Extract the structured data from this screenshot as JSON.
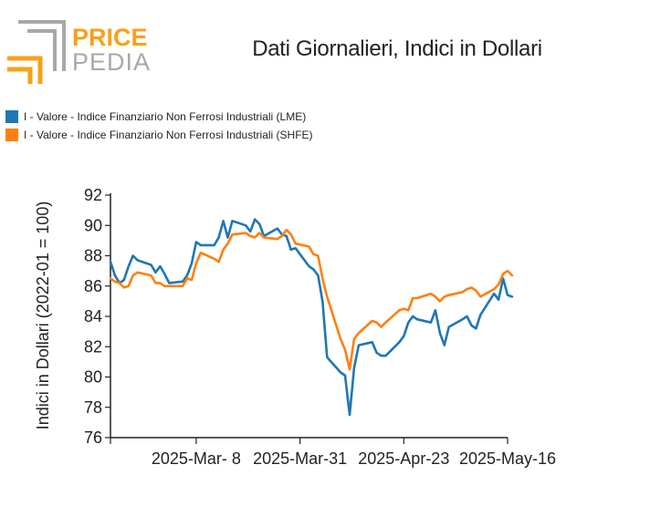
{
  "logo": {
    "text_top": "PRICE",
    "text_bottom": "PEDIA",
    "color_orange": "#f7a11a",
    "color_gray": "#a8a8a8"
  },
  "chart_data": {
    "type": "line",
    "title": "Dati Giornalieri, Indici in Dollari",
    "xlabel": "",
    "ylabel": "Indici in Dollari (2022-01 = 100)",
    "ylim": [
      76,
      92
    ],
    "yticks": [
      76,
      78,
      80,
      82,
      84,
      86,
      88,
      90,
      92
    ],
    "xlim": [
      "2025-02-17",
      "2025-05-16"
    ],
    "xticks": [
      {
        "date": "2025-02-17",
        "label": ""
      },
      {
        "date": "2025-03-08",
        "label": "2025-Mar- 8"
      },
      {
        "date": "2025-03-31",
        "label": "2025-Mar-31"
      },
      {
        "date": "2025-04-23",
        "label": "2025-Apr-23"
      },
      {
        "date": "2025-05-16",
        "label": "2025-May-16"
      }
    ],
    "legend_position": "top-left",
    "grid": false,
    "series": [
      {
        "name": "I - Valore - Indice Finanziario Non Ferrosi Industriali (LME)",
        "color": "#1f77b4",
        "points": [
          [
            "2025-02-17",
            87.6
          ],
          [
            "2025-02-18",
            86.7
          ],
          [
            "2025-02-19",
            86.2
          ],
          [
            "2025-02-20",
            86.4
          ],
          [
            "2025-02-21",
            87.3
          ],
          [
            "2025-02-22",
            88.0
          ],
          [
            "2025-02-23",
            87.7
          ],
          [
            "2025-02-26",
            87.4
          ],
          [
            "2025-02-27",
            86.9
          ],
          [
            "2025-02-28",
            87.3
          ],
          [
            "2025-03-01",
            86.8
          ],
          [
            "2025-03-02",
            86.2
          ],
          [
            "2025-03-05",
            86.3
          ],
          [
            "2025-03-06",
            86.7
          ],
          [
            "2025-03-07",
            87.5
          ],
          [
            "2025-03-08",
            88.9
          ],
          [
            "2025-03-09",
            88.7
          ],
          [
            "2025-03-12",
            88.7
          ],
          [
            "2025-03-13",
            89.2
          ],
          [
            "2025-03-14",
            90.3
          ],
          [
            "2025-03-15",
            89.2
          ],
          [
            "2025-03-16",
            90.3
          ],
          [
            "2025-03-19",
            90.0
          ],
          [
            "2025-03-20",
            89.6
          ],
          [
            "2025-03-21",
            90.4
          ],
          [
            "2025-03-22",
            90.1
          ],
          [
            "2025-03-23",
            89.3
          ],
          [
            "2025-03-26",
            89.8
          ],
          [
            "2025-03-27",
            89.4
          ],
          [
            "2025-03-28",
            89.3
          ],
          [
            "2025-03-29",
            88.4
          ],
          [
            "2025-03-30",
            88.5
          ],
          [
            "2025-04-02",
            87.3
          ],
          [
            "2025-04-03",
            87.1
          ],
          [
            "2025-04-04",
            86.7
          ],
          [
            "2025-04-05",
            85.0
          ],
          [
            "2025-04-06",
            81.3
          ],
          [
            "2025-04-09",
            80.3
          ],
          [
            "2025-04-10",
            80.1
          ],
          [
            "2025-04-11",
            77.5
          ],
          [
            "2025-04-12",
            80.6
          ],
          [
            "2025-04-13",
            82.1
          ],
          [
            "2025-04-16",
            82.3
          ],
          [
            "2025-04-17",
            81.6
          ],
          [
            "2025-04-18",
            81.4
          ],
          [
            "2025-04-19",
            81.4
          ],
          [
            "2025-04-22",
            82.3
          ],
          [
            "2025-04-23",
            82.7
          ],
          [
            "2025-04-24",
            83.6
          ],
          [
            "2025-04-25",
            84.0
          ],
          [
            "2025-04-26",
            83.8
          ],
          [
            "2025-04-29",
            83.6
          ],
          [
            "2025-04-30",
            84.4
          ],
          [
            "2025-05-01",
            82.9
          ],
          [
            "2025-05-02",
            82.1
          ],
          [
            "2025-05-03",
            83.3
          ],
          [
            "2025-05-06",
            83.8
          ],
          [
            "2025-05-07",
            84.0
          ],
          [
            "2025-05-08",
            83.4
          ],
          [
            "2025-05-09",
            83.2
          ],
          [
            "2025-05-10",
            84.1
          ],
          [
            "2025-05-13",
            85.5
          ],
          [
            "2025-05-14",
            85.1
          ],
          [
            "2025-05-15",
            86.5
          ],
          [
            "2025-05-16",
            85.4
          ],
          [
            "2025-05-17",
            85.3
          ]
        ]
      },
      {
        "name": "I - Valore - Indice Finanziario Non Ferrosi Industriali (SHFE)",
        "color": "#ff7f0e",
        "points": [
          [
            "2025-02-17",
            86.5
          ],
          [
            "2025-02-18",
            86.3
          ],
          [
            "2025-02-19",
            86.2
          ],
          [
            "2025-02-20",
            85.9
          ],
          [
            "2025-02-21",
            86.0
          ],
          [
            "2025-02-22",
            86.7
          ],
          [
            "2025-02-23",
            86.9
          ],
          [
            "2025-02-26",
            86.7
          ],
          [
            "2025-02-27",
            86.2
          ],
          [
            "2025-02-28",
            86.2
          ],
          [
            "2025-03-01",
            86.0
          ],
          [
            "2025-03-02",
            86.0
          ],
          [
            "2025-03-05",
            86.0
          ],
          [
            "2025-03-06",
            86.5
          ],
          [
            "2025-03-07",
            86.4
          ],
          [
            "2025-03-08",
            87.5
          ],
          [
            "2025-03-09",
            88.2
          ],
          [
            "2025-03-12",
            87.8
          ],
          [
            "2025-03-13",
            87.6
          ],
          [
            "2025-03-14",
            88.4
          ],
          [
            "2025-03-15",
            88.8
          ],
          [
            "2025-03-16",
            89.4
          ],
          [
            "2025-03-19",
            89.5
          ],
          [
            "2025-03-20",
            89.3
          ],
          [
            "2025-03-21",
            89.2
          ],
          [
            "2025-03-22",
            89.5
          ],
          [
            "2025-03-23",
            89.2
          ],
          [
            "2025-03-26",
            89.1
          ],
          [
            "2025-03-27",
            89.3
          ],
          [
            "2025-03-28",
            89.7
          ],
          [
            "2025-03-29",
            89.4
          ],
          [
            "2025-03-30",
            88.8
          ],
          [
            "2025-04-02",
            88.6
          ],
          [
            "2025-04-03",
            88.1
          ],
          [
            "2025-04-04",
            88.0
          ],
          [
            "2025-04-05",
            86.5
          ],
          [
            "2025-04-06",
            85.3
          ],
          [
            "2025-04-09",
            82.5
          ],
          [
            "2025-04-10",
            81.8
          ],
          [
            "2025-04-11",
            80.5
          ],
          [
            "2025-04-12",
            82.5
          ],
          [
            "2025-04-13",
            82.9
          ],
          [
            "2025-04-16",
            83.7
          ],
          [
            "2025-04-17",
            83.6
          ],
          [
            "2025-04-18",
            83.3
          ],
          [
            "2025-04-19",
            83.6
          ],
          [
            "2025-04-22",
            84.4
          ],
          [
            "2025-04-23",
            84.5
          ],
          [
            "2025-04-24",
            84.4
          ],
          [
            "2025-04-25",
            85.2
          ],
          [
            "2025-04-26",
            85.2
          ],
          [
            "2025-04-29",
            85.5
          ],
          [
            "2025-04-30",
            85.3
          ],
          [
            "2025-05-01",
            85.0
          ],
          [
            "2025-05-02",
            85.3
          ],
          [
            "2025-05-03",
            85.4
          ],
          [
            "2025-05-06",
            85.6
          ],
          [
            "2025-05-07",
            85.8
          ],
          [
            "2025-05-08",
            85.9
          ],
          [
            "2025-05-09",
            85.7
          ],
          [
            "2025-05-10",
            85.3
          ],
          [
            "2025-05-13",
            85.8
          ],
          [
            "2025-05-14",
            86.1
          ],
          [
            "2025-05-15",
            86.8
          ],
          [
            "2025-05-16",
            87.0
          ],
          [
            "2025-05-17",
            86.7
          ]
        ]
      }
    ]
  }
}
